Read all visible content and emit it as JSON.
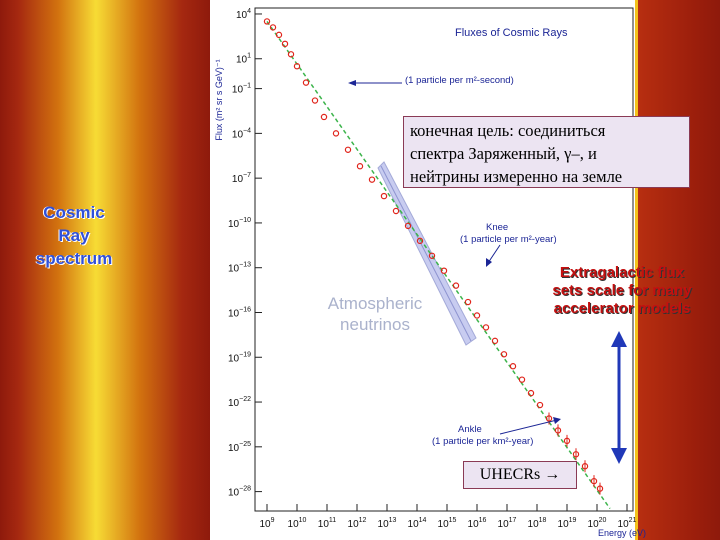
{
  "side_label": [
    "Cosmic",
    "Ray",
    "spectrum"
  ],
  "annotations": {
    "russian": [
      "конечная цель: соединиться",
      "спектра Заряженный, γ–, и",
      "нейтрины измеренно на земле"
    ],
    "uhecr": "UHECRs",
    "atmospheric": [
      "Atmospheric",
      "neutrinos"
    ],
    "extragalactic": [
      "Extragalactic flux",
      "sets scale for many",
      "accelerator models"
    ]
  },
  "colors": {
    "data_points": "#e0241b",
    "fit_line": "#3cb44b",
    "label_text": "#1c2696",
    "band": "#c8ccf0",
    "arrow": "#1c2696"
  },
  "chart_data": {
    "type": "scatter",
    "title": "Fluxes of Cosmic Rays",
    "xlabel": "Energy (eV)",
    "ylabel": "Flux (m² sr s GeV)⁻¹",
    "x_scale": "log",
    "y_scale": "log",
    "xlim_exp": [
      8.6,
      21.2
    ],
    "ylim_exp": [
      -29.3,
      4.4
    ],
    "x_tick_exponents": [
      9,
      10,
      11,
      12,
      13,
      14,
      15,
      16,
      17,
      18,
      19,
      20,
      21
    ],
    "y_tick_exponents": [
      4,
      1,
      -1,
      -4,
      -7,
      -10,
      -13,
      -16,
      -19,
      -22,
      -25,
      -28
    ],
    "chart_labels": [
      {
        "id": "one-per-m2-second",
        "lines": [
          "(1 particle per m²-second)"
        ]
      },
      {
        "id": "knee",
        "lines": [
          "Knee",
          "(1 particle per m²-year)"
        ]
      },
      {
        "id": "ankle",
        "lines": [
          "Ankle",
          "(1 particle per km²-year)"
        ]
      }
    ],
    "series": [
      {
        "points": [
          [
            9.0,
            3.5
          ],
          [
            9.2,
            3.1
          ],
          [
            9.4,
            2.6
          ],
          [
            9.6,
            2.0
          ],
          [
            9.8,
            1.3
          ],
          [
            10.0,
            0.5
          ],
          [
            10.3,
            -0.6
          ],
          [
            10.6,
            -1.8
          ],
          [
            10.9,
            -2.9
          ],
          [
            11.3,
            -4.0
          ],
          [
            11.7,
            -5.1
          ],
          [
            12.1,
            -6.2
          ],
          [
            12.5,
            -7.1
          ],
          [
            12.9,
            -8.2
          ],
          [
            13.3,
            -9.2
          ],
          [
            13.7,
            -10.2
          ],
          [
            14.1,
            -11.2
          ],
          [
            14.5,
            -12.2
          ],
          [
            14.9,
            -13.2
          ],
          [
            15.3,
            -14.2
          ],
          [
            15.7,
            -15.3
          ],
          [
            16.0,
            -16.2
          ],
          [
            16.3,
            -17.0
          ],
          [
            16.6,
            -17.9
          ],
          [
            16.9,
            -18.8
          ],
          [
            17.2,
            -19.6
          ],
          [
            17.5,
            -20.5
          ],
          [
            17.8,
            -21.4
          ],
          [
            18.1,
            -22.2
          ],
          [
            18.4,
            -23.1
          ],
          [
            18.7,
            -23.9
          ],
          [
            19.0,
            -24.6
          ],
          [
            19.3,
            -25.5
          ],
          [
            19.6,
            -26.3
          ],
          [
            19.9,
            -27.3
          ],
          [
            20.1,
            -27.8
          ]
        ]
      }
    ]
  }
}
